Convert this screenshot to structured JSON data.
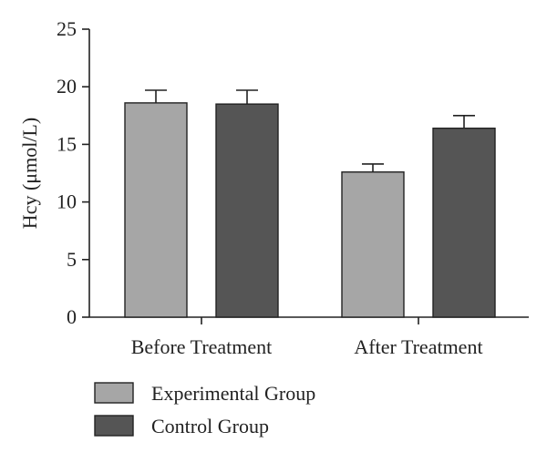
{
  "chart_data": {
    "type": "bar",
    "ylabel": "Hcy (μmol/L)",
    "ylim": [
      0,
      25
    ],
    "yticks": [
      0,
      5,
      10,
      15,
      20,
      25
    ],
    "categories": [
      "Before Treatment",
      "After Treatment"
    ],
    "series": [
      {
        "name": "Experimental Group",
        "color": "#a6a6a6",
        "values": [
          18.6,
          12.6
        ],
        "error": [
          1.1,
          0.7
        ]
      },
      {
        "name": "Control Group",
        "color": "#555555",
        "values": [
          18.5,
          16.4
        ],
        "error": [
          1.2,
          1.1
        ]
      }
    ],
    "legend": "bottom-left",
    "grid": false
  }
}
